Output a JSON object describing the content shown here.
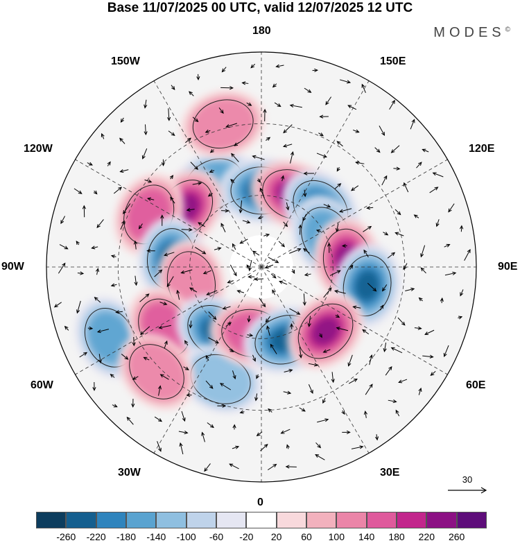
{
  "title": "Base 11/07/2025 00 UTC, valid 12/07/2025 12 UTC",
  "brand": "MODES",
  "brand_mark": "©",
  "longitude_labels": {
    "n180": "180",
    "w150": "150W",
    "e150": "150E",
    "w120": "120W",
    "e120": "120E",
    "w90": "90W",
    "e90": "90E",
    "w60": "60W",
    "e60": "60E",
    "w30": "30W",
    "e30": "30E",
    "s0": "0"
  },
  "wind_scale": {
    "label": "30"
  },
  "colorbar": {
    "colors": [
      "#0d3d5e",
      "#155f8f",
      "#2f84bd",
      "#5aa3d0",
      "#8fbfe0",
      "#bfd3ea",
      "#e5e6f2",
      "#ffffff",
      "#f8d9dc",
      "#f2b1bd",
      "#eb85a8",
      "#df5a9c",
      "#c2268c",
      "#8c1184",
      "#5e0d7a"
    ],
    "ticks": [
      "-260",
      "-220",
      "-180",
      "-140",
      "-100",
      "-60",
      "-20",
      "20",
      "60",
      "100",
      "140",
      "180",
      "220",
      "260"
    ]
  },
  "anomaly_centers": [
    {
      "sign": "negative",
      "intensity": 0.45,
      "lon": -150,
      "lat": 50
    },
    {
      "sign": "negative",
      "intensity": 0.85,
      "lon": 180,
      "lat": 58
    },
    {
      "sign": "positive",
      "intensity": 0.8,
      "lon": 157,
      "lat": 57
    },
    {
      "sign": "negative",
      "intensity": 0.6,
      "lon": 135,
      "lat": 55
    },
    {
      "sign": "positive",
      "intensity": 0.85,
      "lon": -128,
      "lat": 50
    },
    {
      "sign": "positive",
      "intensity": 0.55,
      "lon": -115,
      "lat": 38
    },
    {
      "sign": "negative",
      "intensity": 0.55,
      "lon": 115,
      "lat": 60
    },
    {
      "sign": "positive",
      "intensity": 0.85,
      "lon": 95,
      "lat": 54
    },
    {
      "sign": "negative",
      "intensity": 0.9,
      "lon": -95,
      "lat": 52
    },
    {
      "sign": "negative",
      "intensity": 0.9,
      "lon": 80,
      "lat": 45
    },
    {
      "sign": "positive",
      "intensity": 0.35,
      "lon": -78,
      "lat": 60
    },
    {
      "sign": "negative",
      "intensity": 0.5,
      "lon": -65,
      "lat": 20
    },
    {
      "sign": "positive",
      "intensity": 0.45,
      "lon": -58,
      "lat": 42
    },
    {
      "sign": "negative",
      "intensity": 0.75,
      "lon": -35,
      "lat": 57
    },
    {
      "sign": "negative",
      "intensity": 0.4,
      "lon": -20,
      "lat": 40
    },
    {
      "sign": "positive",
      "intensity": 0.55,
      "lon": -8,
      "lat": 62
    },
    {
      "sign": "negative",
      "intensity": 0.8,
      "lon": 18,
      "lat": 58
    },
    {
      "sign": "positive",
      "intensity": 0.9,
      "lon": 45,
      "lat": 52
    },
    {
      "sign": "positive",
      "intensity": 0.35,
      "lon": -45,
      "lat": 28
    },
    {
      "sign": "positive",
      "intensity": 0.3,
      "lon": -165,
      "lat": 28
    }
  ]
}
